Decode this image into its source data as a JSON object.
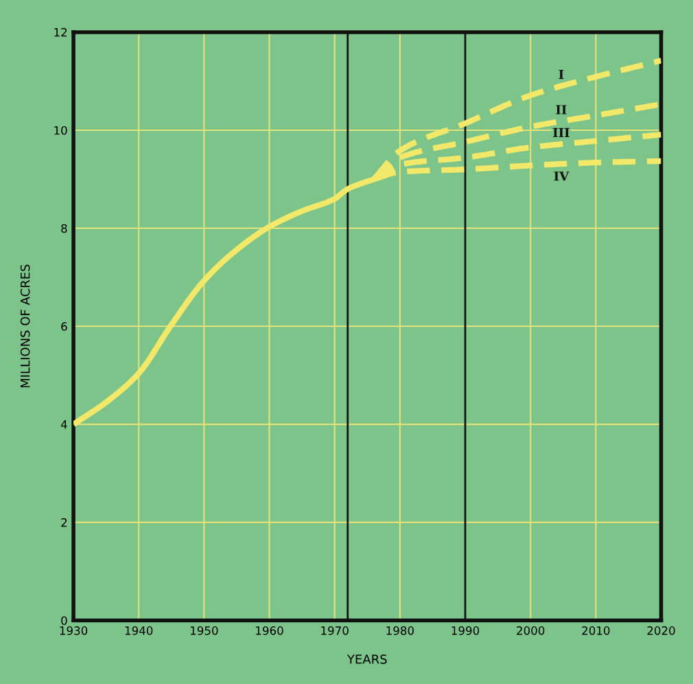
{
  "chart_data": {
    "type": "line",
    "xlabel": "YEARS",
    "ylabel": "MILLIONS OF ACRES",
    "xlim": [
      1930,
      2020
    ],
    "xticks": [
      1930,
      1940,
      1950,
      1960,
      1970,
      1980,
      1990,
      2000,
      2010,
      2020
    ],
    "ylim": [
      0,
      12
    ],
    "yticks": [
      0,
      2,
      4,
      6,
      8,
      10,
      12
    ],
    "grid": true,
    "marker": "none",
    "series": [
      {
        "color": "#f2e86a",
        "line_style": "solid",
        "x": [
          1930,
          1935,
          1940,
          1945,
          1950,
          1955,
          1960,
          1965,
          1970,
          1972,
          1976
        ],
        "values": [
          4.0,
          4.45,
          5.04,
          6.03,
          6.93,
          7.56,
          8.03,
          8.35,
          8.6,
          8.8,
          9.0
        ]
      },
      {
        "name": "I",
        "color": "#f2e86a",
        "line_style": "dashed",
        "x": [
          1976,
          1980,
          1990,
          2000,
          2010,
          2020
        ],
        "values": [
          9.0,
          9.58,
          10.14,
          10.71,
          11.09,
          11.42
        ]
      },
      {
        "name": "II",
        "color": "#f2e86a",
        "line_style": "dashed",
        "x": [
          1976,
          1980,
          1990,
          2000,
          2010,
          2020
        ],
        "values": [
          9.0,
          9.44,
          9.76,
          10.07,
          10.3,
          10.53
        ]
      },
      {
        "name": "III",
        "color": "#f2e86a",
        "line_style": "dashed",
        "x": [
          1976,
          1980,
          1990,
          2000,
          2010,
          2020
        ],
        "values": [
          9.0,
          9.3,
          9.44,
          9.65,
          9.78,
          9.91
        ]
      },
      {
        "name": "IV",
        "color": "#f2e86a",
        "line_style": "dashed",
        "x": [
          1976,
          1980,
          1990,
          2000,
          2010,
          2020
        ],
        "values": [
          9.0,
          9.15,
          9.2,
          9.28,
          9.34,
          9.37
        ]
      }
    ],
    "ref_lines": [
      {
        "axis": "x",
        "value": 1972,
        "color": "#111111"
      },
      {
        "axis": "x",
        "value": 1990,
        "color": "#111111"
      }
    ]
  }
}
